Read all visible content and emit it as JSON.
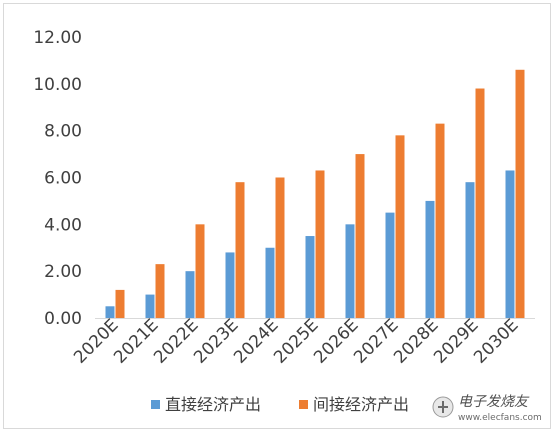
{
  "chart_data": {
    "type": "bar",
    "categories": [
      "2020E",
      "2021E",
      "2022E",
      "2023E",
      "2024E",
      "2025E",
      "2026E",
      "2027E",
      "2028E",
      "2029E",
      "2030E"
    ],
    "series": [
      {
        "name": "直接经济产出",
        "color": "#5b9bd5",
        "values": [
          0.5,
          1.0,
          2.0,
          2.8,
          3.0,
          3.5,
          4.0,
          4.5,
          5.0,
          5.8,
          6.3
        ]
      },
      {
        "name": "间接经济产出",
        "color": "#ed7d31",
        "values": [
          1.2,
          2.3,
          4.0,
          5.8,
          6.0,
          6.3,
          7.0,
          7.8,
          8.3,
          9.8,
          10.6
        ]
      }
    ],
    "y_ticks": [
      "0.00",
      "2.00",
      "4.00",
      "6.00",
      "8.00",
      "10.00",
      "12.00"
    ],
    "ylim": [
      0,
      12
    ],
    "grid": false,
    "legend_position": "bottom",
    "title": "",
    "xlabel": "",
    "ylabel": ""
  },
  "watermark": {
    "text": "电子发烧友",
    "url": "www.elecfans.com",
    "icon": "electric-plug-logo"
  }
}
